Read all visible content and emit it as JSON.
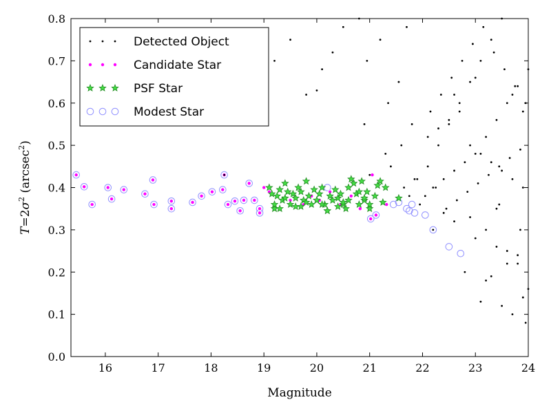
{
  "chart_data": {
    "type": "scatter",
    "xlabel": "Magnitude",
    "ylabel_plain": "T = 2σ² (arcsec²)",
    "xlim": [
      15.35,
      24.0
    ],
    "ylim": [
      0.0,
      0.8
    ],
    "x_ticks": [
      16,
      17,
      18,
      19,
      20,
      21,
      22,
      23,
      24
    ],
    "y_ticks": [
      0.0,
      0.1,
      0.2,
      0.3,
      0.4,
      0.5,
      0.6,
      0.7,
      0.8
    ],
    "x_tick_labels": [
      "16",
      "17",
      "18",
      "19",
      "20",
      "21",
      "22",
      "23",
      "24"
    ],
    "y_tick_labels": [
      "0.0",
      "0.1",
      "0.2",
      "0.3",
      "0.4",
      "0.5",
      "0.6",
      "0.7",
      "0.8"
    ],
    "grid": false,
    "legend_position": "top-left",
    "series": [
      {
        "name": "Detected Object",
        "marker": "dot",
        "color": "#000000",
        "x": [
          18.25,
          21.0,
          21.4,
          21.6,
          21.8,
          21.35,
          21.55,
          20.95,
          21.2,
          21.7,
          20.5,
          20.8,
          20.3,
          20.1,
          19.8,
          19.5,
          19.2,
          20.9,
          21.3,
          21.9,
          22.1,
          22.3,
          22.5,
          22.7,
          22.9,
          23.1,
          23.3,
          23.5,
          23.7,
          23.9,
          22.2,
          22.4,
          22.6,
          22.8,
          23.0,
          23.2,
          23.4,
          23.6,
          23.8,
          24.0,
          22.05,
          22.25,
          22.45,
          22.65,
          22.85,
          23.05,
          23.25,
          23.45,
          23.65,
          23.85,
          22.15,
          22.35,
          22.55,
          22.75,
          22.95,
          23.15,
          23.35,
          23.55,
          23.75,
          23.95,
          21.65,
          21.85,
          21.75,
          21.95,
          22.1,
          22.3,
          22.5,
          22.7,
          22.9,
          23.1,
          23.3,
          23.5,
          23.7,
          23.9,
          22.2,
          22.6,
          23.0,
          23.4,
          23.8,
          22.4,
          22.8,
          23.2,
          23.6,
          24.0,
          23.1,
          23.5,
          23.9,
          23.3,
          23.7,
          22.9,
          23.2,
          23.6,
          23.95,
          23.4,
          23.8,
          22.6,
          23.0,
          23.45,
          23.85,
          20.0
        ],
        "y": [
          0.43,
          0.43,
          0.45,
          0.5,
          0.55,
          0.6,
          0.65,
          0.7,
          0.75,
          0.78,
          0.78,
          0.8,
          0.72,
          0.68,
          0.62,
          0.75,
          0.7,
          0.55,
          0.48,
          0.42,
          0.45,
          0.5,
          0.55,
          0.6,
          0.65,
          0.7,
          0.75,
          0.8,
          0.62,
          0.58,
          0.4,
          0.42,
          0.44,
          0.46,
          0.48,
          0.52,
          0.56,
          0.6,
          0.64,
          0.68,
          0.38,
          0.4,
          0.35,
          0.37,
          0.39,
          0.41,
          0.43,
          0.45,
          0.47,
          0.49,
          0.58,
          0.62,
          0.66,
          0.7,
          0.74,
          0.78,
          0.72,
          0.68,
          0.64,
          0.6,
          0.4,
          0.42,
          0.38,
          0.36,
          0.52,
          0.54,
          0.56,
          0.58,
          0.5,
          0.48,
          0.46,
          0.44,
          0.42,
          0.4,
          0.3,
          0.32,
          0.28,
          0.26,
          0.24,
          0.34,
          0.2,
          0.18,
          0.22,
          0.16,
          0.13,
          0.12,
          0.14,
          0.19,
          0.1,
          0.33,
          0.3,
          0.25,
          0.08,
          0.35,
          0.22,
          0.62,
          0.66,
          0.36,
          0.3,
          0.63
        ]
      },
      {
        "name": "Candidate Star",
        "marker": "circle",
        "color": "#ff00ff",
        "x": [
          15.45,
          15.6,
          15.75,
          16.05,
          16.12,
          16.35,
          16.75,
          16.9,
          16.92,
          17.25,
          17.25,
          17.65,
          17.82,
          18.02,
          18.22,
          18.25,
          18.32,
          18.45,
          18.55,
          18.62,
          18.72,
          18.82,
          18.92,
          18.92,
          19.0,
          19.1,
          19.25,
          19.5,
          19.75,
          19.9,
          20.05,
          20.25,
          20.45,
          20.65,
          20.82,
          20.92,
          21.05,
          21.12,
          21.32,
          21.02
        ],
        "y": [
          0.43,
          0.402,
          0.36,
          0.4,
          0.373,
          0.395,
          0.385,
          0.418,
          0.36,
          0.368,
          0.35,
          0.365,
          0.38,
          0.39,
          0.395,
          0.43,
          0.36,
          0.368,
          0.345,
          0.37,
          0.41,
          0.37,
          0.35,
          0.34,
          0.4,
          0.39,
          0.38,
          0.37,
          0.36,
          0.38,
          0.37,
          0.39,
          0.36,
          0.38,
          0.35,
          0.37,
          0.43,
          0.335,
          0.36,
          0.326
        ]
      },
      {
        "name": "PSF Star",
        "marker": "star",
        "color": "#228b22",
        "x": [
          19.1,
          19.15,
          19.2,
          19.25,
          19.3,
          19.35,
          19.4,
          19.45,
          19.5,
          19.55,
          19.6,
          19.65,
          19.7,
          19.75,
          19.8,
          19.85,
          19.9,
          19.95,
          20.0,
          20.05,
          20.1,
          20.15,
          20.2,
          20.25,
          20.3,
          20.35,
          20.4,
          20.45,
          20.5,
          20.55,
          20.6,
          20.65,
          20.7,
          20.75,
          20.8,
          20.85,
          20.9,
          20.95,
          21.0,
          21.1,
          21.2,
          21.3,
          21.55,
          19.2,
          19.4,
          19.6,
          19.8,
          20.0,
          20.2,
          20.4,
          20.6,
          20.8,
          21.0,
          21.15,
          19.3,
          19.7,
          20.1,
          20.5,
          20.9,
          21.25
        ],
        "y": [
          0.4,
          0.385,
          0.35,
          0.38,
          0.395,
          0.37,
          0.41,
          0.39,
          0.36,
          0.385,
          0.375,
          0.4,
          0.39,
          0.37,
          0.415,
          0.38,
          0.36,
          0.395,
          0.37,
          0.385,
          0.4,
          0.36,
          0.345,
          0.38,
          0.37,
          0.395,
          0.375,
          0.385,
          0.36,
          0.35,
          0.4,
          0.42,
          0.41,
          0.385,
          0.36,
          0.415,
          0.37,
          0.39,
          0.35,
          0.38,
          0.415,
          0.4,
          0.375,
          0.36,
          0.375,
          0.355,
          0.365,
          0.37,
          0.345,
          0.355,
          0.37,
          0.39,
          0.36,
          0.405,
          0.35,
          0.355,
          0.36,
          0.365,
          0.375,
          0.365
        ]
      },
      {
        "name": "Modest Star",
        "marker": "open-circle",
        "color": "#9090ff",
        "x": [
          15.45,
          15.6,
          15.75,
          16.05,
          16.12,
          16.35,
          16.75,
          16.9,
          16.92,
          17.25,
          17.25,
          17.65,
          17.82,
          18.02,
          18.22,
          18.25,
          18.32,
          18.45,
          18.55,
          18.62,
          18.72,
          18.82,
          18.92,
          18.92,
          20.2,
          21.02,
          21.12,
          21.45,
          21.55,
          21.7,
          21.75,
          21.8,
          21.85,
          22.05,
          22.2,
          22.5,
          22.72
        ],
        "y": [
          0.43,
          0.402,
          0.36,
          0.4,
          0.373,
          0.395,
          0.385,
          0.418,
          0.36,
          0.368,
          0.35,
          0.365,
          0.38,
          0.39,
          0.395,
          0.43,
          0.36,
          0.368,
          0.345,
          0.37,
          0.41,
          0.37,
          0.35,
          0.34,
          0.4,
          0.326,
          0.335,
          0.36,
          0.365,
          0.35,
          0.345,
          0.36,
          0.34,
          0.335,
          0.3,
          0.26,
          0.244
        ]
      }
    ]
  }
}
